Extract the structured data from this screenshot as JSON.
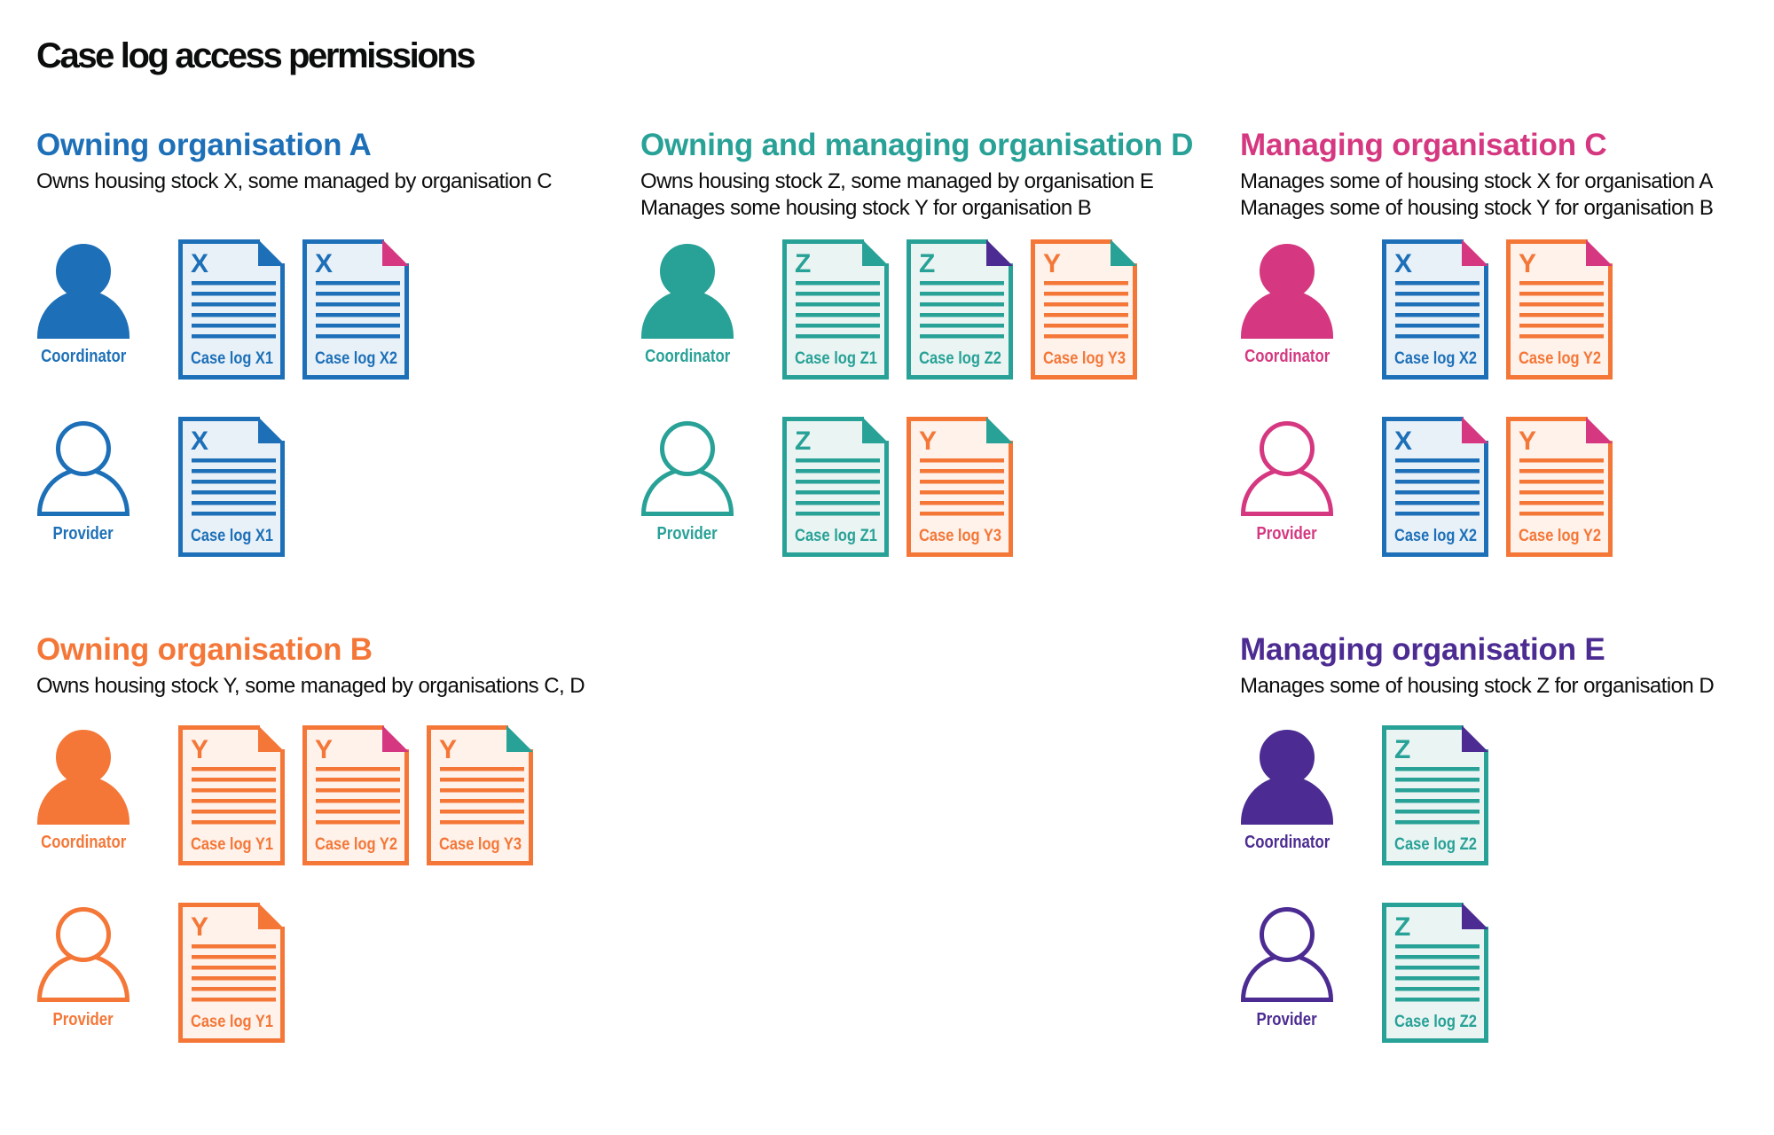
{
  "title": "Case log access permissions",
  "colors": {
    "blue": "#1d70b8",
    "teal": "#28a197",
    "pink": "#d53880",
    "orange": "#f47738",
    "purple": "#4c2c92",
    "text": "#0b0c0c"
  },
  "tints": {
    "blue": "#e9f1f8",
    "teal": "#eaf5f3",
    "orange": "#fef2ea"
  },
  "sections": [
    {
      "heading": "Owning organisation A",
      "color": "blue",
      "column": 0,
      "band": 0,
      "description": [
        "Owns housing stock X, some managed by organisation C"
      ],
      "rows": [
        {
          "role": "Coordinator",
          "filled": true,
          "docs": [
            {
              "letter": "X",
              "label": "Case log X1",
              "color": "blue",
              "fold": "blue"
            },
            {
              "letter": "X",
              "label": "Case log X2",
              "color": "blue",
              "fold": "pink"
            }
          ]
        },
        {
          "role": "Provider",
          "filled": false,
          "docs": [
            {
              "letter": "X",
              "label": "Case log X1",
              "color": "blue",
              "fold": "blue"
            }
          ]
        }
      ]
    },
    {
      "heading": "Owning and managing organisation D",
      "color": "teal",
      "column": 1,
      "band": 0,
      "description": [
        "Owns housing stock Z, some managed by organisation E",
        "Manages some housing stock Y for organisation B"
      ],
      "rows": [
        {
          "role": "Coordinator",
          "filled": true,
          "docs": [
            {
              "letter": "Z",
              "label": "Case log Z1",
              "color": "teal",
              "fold": "teal"
            },
            {
              "letter": "Z",
              "label": "Case log Z2",
              "color": "teal",
              "fold": "purple"
            },
            {
              "letter": "Y",
              "label": "Case log Y3",
              "color": "orange",
              "fold": "teal"
            }
          ]
        },
        {
          "role": "Provider",
          "filled": false,
          "docs": [
            {
              "letter": "Z",
              "label": "Case log Z1",
              "color": "teal",
              "fold": "teal"
            },
            {
              "letter": "Y",
              "label": "Case log Y3",
              "color": "orange",
              "fold": "teal"
            }
          ]
        }
      ]
    },
    {
      "heading": "Managing organisation C",
      "color": "pink",
      "column": 2,
      "band": 0,
      "description": [
        "Manages some of housing stock X for organisation A",
        "Manages some of housing stock Y for organisation B"
      ],
      "rows": [
        {
          "role": "Coordinator",
          "filled": true,
          "docs": [
            {
              "letter": "X",
              "label": "Case log X2",
              "color": "blue",
              "fold": "pink"
            },
            {
              "letter": "Y",
              "label": "Case log Y2",
              "color": "orange",
              "fold": "pink"
            }
          ]
        },
        {
          "role": "Provider",
          "filled": false,
          "docs": [
            {
              "letter": "X",
              "label": "Case log X2",
              "color": "blue",
              "fold": "pink"
            },
            {
              "letter": "Y",
              "label": "Case log Y2",
              "color": "orange",
              "fold": "pink"
            }
          ]
        }
      ]
    },
    {
      "heading": "Owning organisation B",
      "color": "orange",
      "column": 0,
      "band": 1,
      "description": [
        "Owns housing stock Y, some managed by organisations C, D"
      ],
      "rows": [
        {
          "role": "Coordinator",
          "filled": true,
          "docs": [
            {
              "letter": "Y",
              "label": "Case log Y1",
              "color": "orange",
              "fold": "orange"
            },
            {
              "letter": "Y",
              "label": "Case log Y2",
              "color": "orange",
              "fold": "pink"
            },
            {
              "letter": "Y",
              "label": "Case log Y3",
              "color": "orange",
              "fold": "teal"
            }
          ]
        },
        {
          "role": "Provider",
          "filled": false,
          "docs": [
            {
              "letter": "Y",
              "label": "Case log Y1",
              "color": "orange",
              "fold": "orange"
            }
          ]
        }
      ]
    },
    {
      "heading": "Managing organisation E",
      "color": "purple",
      "column": 2,
      "band": 1,
      "description": [
        "Manages some of housing stock Z for organisation D"
      ],
      "rows": [
        {
          "role": "Coordinator",
          "filled": true,
          "docs": [
            {
              "letter": "Z",
              "label": "Case log Z2",
              "color": "teal",
              "fold": "purple"
            }
          ]
        },
        {
          "role": "Provider",
          "filled": false,
          "docs": [
            {
              "letter": "Z",
              "label": "Case log Z2",
              "color": "teal",
              "fold": "purple"
            }
          ]
        }
      ]
    }
  ]
}
